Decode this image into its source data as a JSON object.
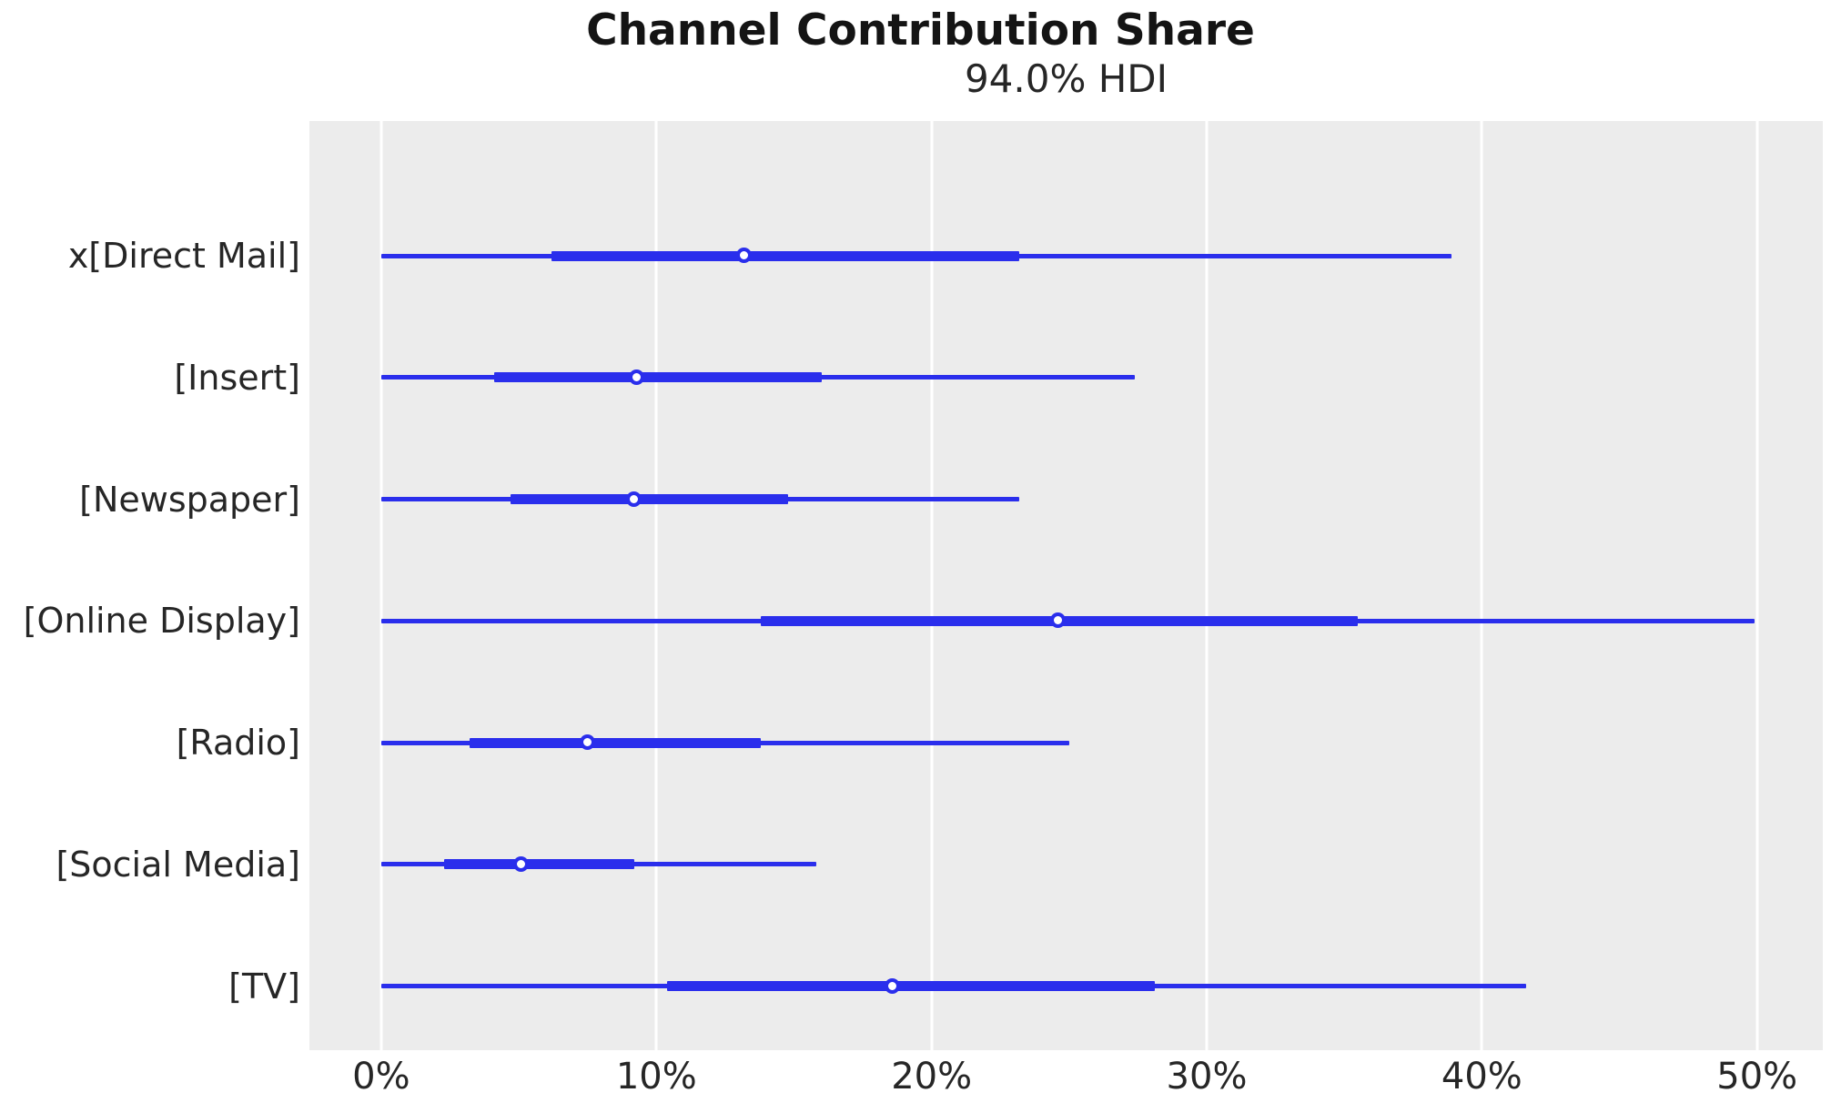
{
  "title": "Channel Contribution Share",
  "subtitle": "94.0% HDI",
  "chart_data": {
    "type": "forest",
    "title": "Channel Contribution Share",
    "subtitle": "94.0% HDI",
    "hdi_probability": "94.0%",
    "xlabel": "",
    "ylabel": "",
    "x_unit": "percent",
    "x_ticks": [
      0,
      10,
      20,
      30,
      40,
      50
    ],
    "x_tick_labels": [
      "0%",
      "10%",
      "20%",
      "30%",
      "40%",
      "50%"
    ],
    "xlim": [
      -2.61,
      52.39
    ],
    "grid": true,
    "legend": false,
    "series": [
      {
        "label": "x[Direct Mail]",
        "hdi_low": 0.0,
        "quartile_low": 6.2,
        "median": 13.2,
        "quartile_high": 23.2,
        "hdi_high": 38.9
      },
      {
        "label": "[Insert]",
        "hdi_low": 0.0,
        "quartile_low": 4.1,
        "median": 9.3,
        "quartile_high": 16.0,
        "hdi_high": 27.4
      },
      {
        "label": "[Newspaper]",
        "hdi_low": 0.0,
        "quartile_low": 4.7,
        "median": 9.2,
        "quartile_high": 14.8,
        "hdi_high": 23.2
      },
      {
        "label": "[Online Display]",
        "hdi_low": 0.0,
        "quartile_low": 13.8,
        "median": 24.6,
        "quartile_high": 35.5,
        "hdi_high": 49.9
      },
      {
        "label": "[Radio]",
        "hdi_low": 0.0,
        "quartile_low": 3.2,
        "median": 7.5,
        "quartile_high": 13.8,
        "hdi_high": 25.0
      },
      {
        "label": "[Social Media]",
        "hdi_low": 0.0,
        "quartile_low": 2.3,
        "median": 5.1,
        "quartile_high": 9.2,
        "hdi_high": 15.8
      },
      {
        "label": "[TV]",
        "hdi_low": 0.0,
        "quartile_low": 10.4,
        "median": 18.6,
        "quartile_high": 28.1,
        "hdi_high": 41.6
      }
    ],
    "colors": {
      "line": "#2a2eec",
      "marker_fill": "#ffffff",
      "plot_background": "#ececec",
      "gridline": "#ffffff",
      "text": "#262626"
    }
  }
}
